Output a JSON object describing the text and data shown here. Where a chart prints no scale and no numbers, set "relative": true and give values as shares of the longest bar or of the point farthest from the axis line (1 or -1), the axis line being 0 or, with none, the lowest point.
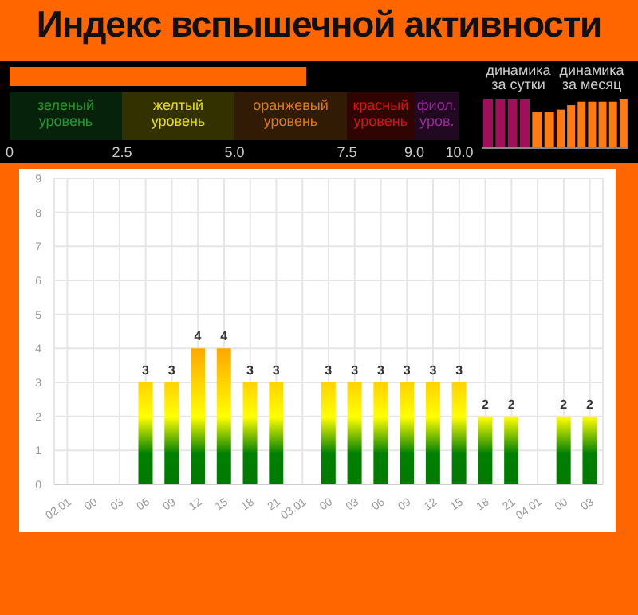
{
  "chart_data": [
    {
      "type": "bar",
      "orientation": "horizontal",
      "title": "Индекс вспышечной активности",
      "categories": [
        null
      ],
      "values": [
        6.6
      ],
      "color": "#ff6600",
      "xlim": [
        0,
        10
      ],
      "xticks": [
        0,
        2.5,
        {
          "value": 5,
          "label": "5.0"
        },
        {
          "value": 7.5,
          "label": "7.5"
        },
        {
          "value": 9,
          "label": "9.0"
        },
        {
          "value": 10,
          "label": "10.0"
        }
      ],
      "bands": [
        {
          "axis": "x",
          "from": 0,
          "to": 2.5,
          "label": "зеленый уровень",
          "color": "#1e9a2e"
        },
        {
          "axis": "x",
          "from": 2.5,
          "to": 5,
          "label": "желтый уровень",
          "color": "#e8e000"
        },
        {
          "axis": "x",
          "from": 5,
          "to": 7.5,
          "label": "оранжевый уровень",
          "color": "#e07a10"
        },
        {
          "axis": "x",
          "from": 7.5,
          "to": 9,
          "label": "красный уровень",
          "color": "#e01010"
        },
        {
          "axis": "x",
          "from": 9,
          "to": 10,
          "label": "фиол. уров.",
          "color": "#9a2a9a"
        }
      ]
    },
    {
      "type": "bar",
      "title": "динамика за сутки",
      "relative": true,
      "categories": [
        null,
        null,
        null,
        null,
        null,
        null
      ],
      "values": [
        1,
        1,
        1,
        1,
        0.74,
        0.74
      ],
      "colors": [
        "#a0105a",
        "#a0105a",
        "#a0105a",
        "#a0105a",
        "#ff7a10",
        "#ff7a10"
      ]
    },
    {
      "type": "bar",
      "title": "динамика за месяц",
      "relative": true,
      "categories": [
        null,
        null,
        null,
        null,
        null,
        null,
        null
      ],
      "values": [
        0.78,
        0.87,
        0.94,
        0.94,
        0.94,
        0.94,
        1
      ],
      "colors": [
        "#ff7a10",
        "#ff7a10",
        "#ff7a10",
        "#ff7a10",
        "#ff7a10",
        "#ff7a10",
        "#ff7a10"
      ]
    },
    {
      "type": "bar",
      "categories": [
        "02.01",
        "00",
        "03",
        "06",
        "09",
        "12",
        "15",
        "18",
        "21",
        "03.01",
        "00",
        "03",
        "06",
        "09",
        "12",
        "15",
        "18",
        "21",
        "04.01",
        "00",
        "03"
      ],
      "values": [
        0,
        0,
        0,
        3,
        3,
        4,
        4,
        3,
        3,
        0,
        3,
        3,
        3,
        3,
        3,
        3,
        2,
        2,
        0,
        2,
        2
      ],
      "value_labels": [
        null,
        null,
        null,
        "3",
        "3",
        "4",
        "4",
        "3",
        "3",
        null,
        "3",
        "3",
        "3",
        "3",
        "3",
        "3",
        "2",
        "2",
        null,
        "2",
        "2"
      ],
      "ylim": [
        0,
        9
      ],
      "yticks": [
        0,
        1,
        2,
        3,
        4,
        5,
        6,
        7,
        8,
        9
      ],
      "grid": true
    }
  ]
}
